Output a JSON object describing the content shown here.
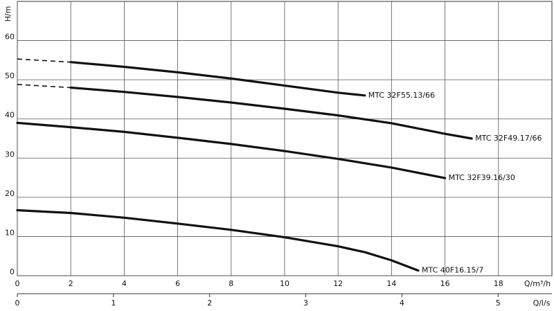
{
  "chart_data": {
    "type": "line",
    "y_label": "H/m",
    "x_label": "Q/m³/h",
    "x2_label": "Q/l/s",
    "xlim": [
      0,
      20
    ],
    "xticks": [
      0,
      2,
      4,
      6,
      8,
      10,
      12,
      14,
      16,
      18
    ],
    "x2lim": [
      0,
      5.56
    ],
    "x2ticks": [
      0,
      1,
      2,
      3,
      4,
      5
    ],
    "ylim": [
      0,
      70
    ],
    "yticks": [
      0,
      10,
      20,
      30,
      40,
      50,
      60
    ],
    "grid": true,
    "color": "#111111",
    "curves": [
      {
        "name": "MTC 32F55.13/66",
        "x": [
          2,
          4,
          6,
          8,
          10,
          12,
          13
        ],
        "values": [
          54.5,
          53.3,
          51.9,
          50.3,
          48.5,
          46.7,
          46.0
        ],
        "extension": {
          "x": [
            0,
            2
          ],
          "values": [
            55.3,
            54.5
          ]
        }
      },
      {
        "name": "MTC 32F49.17/66",
        "x": [
          2,
          4,
          6,
          8,
          10,
          12,
          14,
          16,
          17
        ],
        "values": [
          48.0,
          46.9,
          45.6,
          44.2,
          42.6,
          40.9,
          38.9,
          36.2,
          35.0
        ],
        "extension": {
          "x": [
            0,
            2
          ],
          "values": [
            48.8,
            48.0
          ]
        }
      },
      {
        "name": "MTC 32F39.16/30",
        "x": [
          0,
          2,
          4,
          6,
          8,
          10,
          12,
          14,
          16
        ],
        "values": [
          39.0,
          37.9,
          36.7,
          35.2,
          33.6,
          31.8,
          29.8,
          27.6,
          24.9
        ]
      },
      {
        "name": "MTC 40F16.15/7",
        "x": [
          0,
          2,
          4,
          6,
          8,
          10,
          12,
          13,
          14,
          15
        ],
        "values": [
          16.7,
          16.0,
          14.8,
          13.3,
          11.7,
          9.8,
          7.5,
          6.0,
          3.9,
          1.3
        ]
      }
    ]
  }
}
